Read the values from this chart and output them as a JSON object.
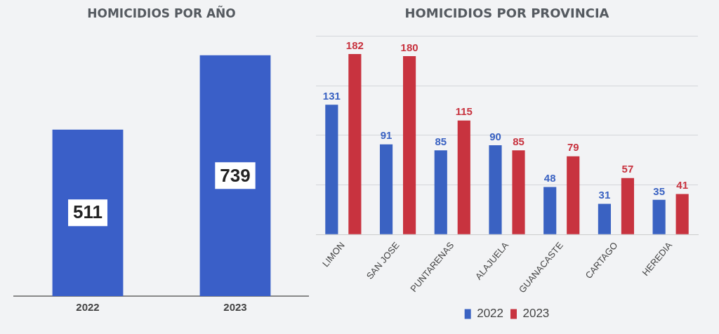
{
  "chart_data": [
    {
      "type": "bar",
      "title": "HOMICIDIOS POR AÑO",
      "categories": [
        "2022",
        "2023"
      ],
      "values": [
        511,
        739
      ],
      "color": "#3a5fc8",
      "data_labels": true
    },
    {
      "type": "bar",
      "title": "HOMICIDIOS POR PROVINCIA",
      "categories": [
        "LIMON",
        "SAN JOSE",
        "PUNTARENAS",
        "ALAJUELA",
        "GUANACASTE",
        "CARTAGO",
        "HEREDIA"
      ],
      "series": [
        {
          "name": "2022",
          "color": "#3a62c2",
          "values": [
            131,
            91,
            85,
            90,
            48,
            31,
            35
          ]
        },
        {
          "name": "2023",
          "color": "#c8333f",
          "values": [
            182,
            180,
            115,
            85,
            79,
            57,
            41
          ]
        }
      ],
      "ylim": [
        0,
        200
      ],
      "yticks": [
        {
          "value": 0,
          "label": null
        },
        {
          "value": 50,
          "label": null
        },
        {
          "value": 100,
          "label": null
        },
        {
          "value": 150,
          "label": null
        },
        {
          "value": 200,
          "label": null
        }
      ],
      "tick_labels": "x",
      "grid": "y",
      "legend": "bottom",
      "data_labels": true
    }
  ]
}
